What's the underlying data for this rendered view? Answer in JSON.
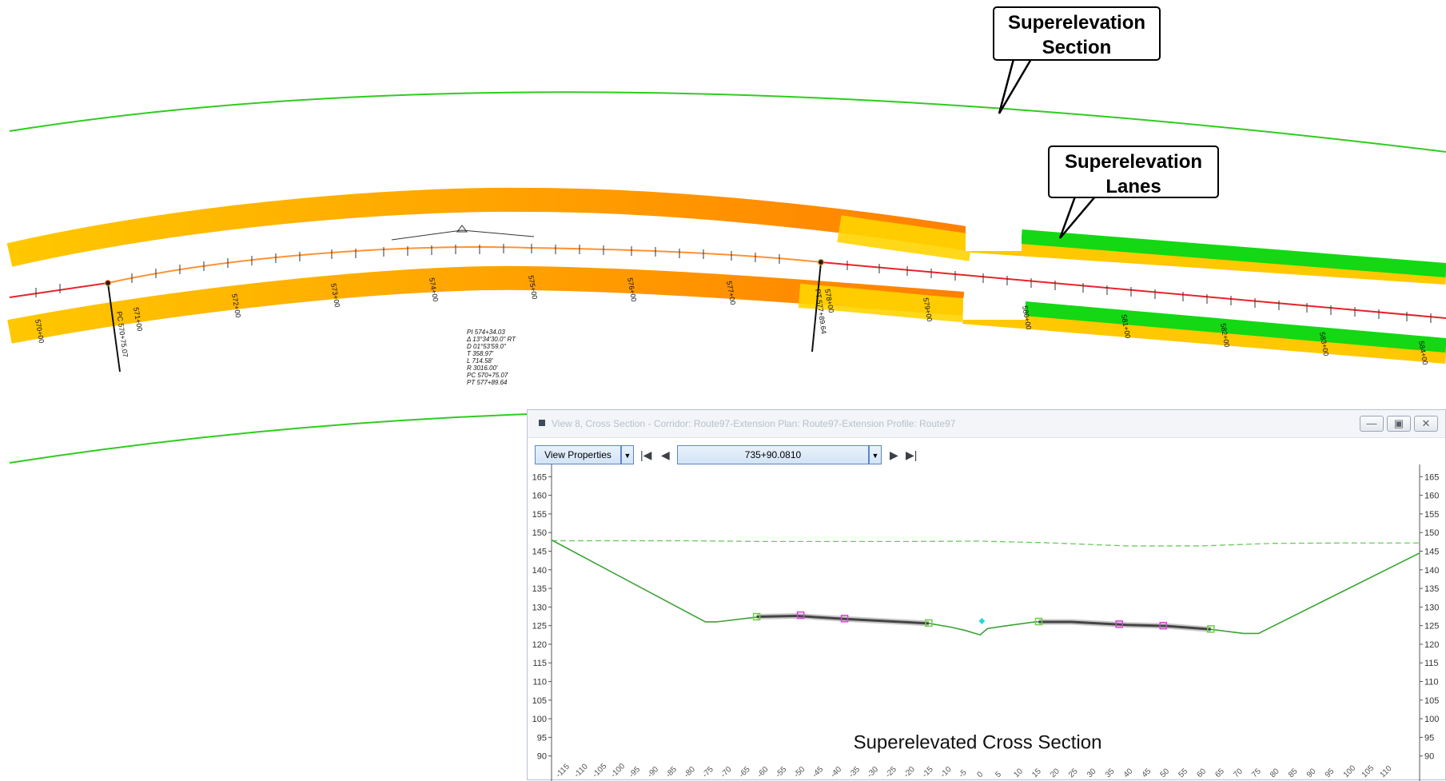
{
  "callouts": {
    "section": {
      "line1": "Superelevation",
      "line2": "Section"
    },
    "lanes": {
      "line1": "Superelevation",
      "line2": "Lanes"
    }
  },
  "plan": {
    "station_labels": [
      "570+00",
      "571+00",
      "572+00",
      "573+00",
      "574+00",
      "575+00",
      "576+00",
      "577+00",
      "578+00",
      "579+00",
      "580+00",
      "581+00",
      "582+00",
      "583+00",
      "584+00"
    ],
    "pc_label": "PC 570+75.07",
    "pt_label": "PT 577+89.64",
    "curve_data": [
      "PI  574+34.03",
      "Δ  13°34'30.0\"  RT",
      "D  01°53'59.0\"",
      "T  358.97'",
      "L  714.58'",
      "R  3016.00'",
      "PC  570+75.07",
      "PT  577+89.64"
    ],
    "colors": {
      "green": "#2ecc1f",
      "orange": "#ff7f00",
      "yellow": "#ffc800",
      "red": "#e8232a"
    }
  },
  "cross_section_window": {
    "title": "View 8, Cross Section - Corridor: Route97-Extension Plan: Route97-Extension Profile: Route97",
    "view_properties_label": "View Properties",
    "station_value": "735+90.0810",
    "icons": [
      "first-icon",
      "previous-icon",
      "dropdown-icon",
      "next-icon",
      "last-icon",
      "minimize-icon",
      "restore-icon",
      "close-icon"
    ],
    "caption": "Superelevated Cross Section"
  },
  "chart_data": {
    "type": "line",
    "title": "Superelevated Cross Section",
    "xlabel": "",
    "ylabel": "",
    "xlim": [
      -117,
      120
    ],
    "ylim": [
      88,
      167
    ],
    "x_ticks": [
      -115,
      -110,
      -105,
      -100,
      -95,
      -90,
      -85,
      -80,
      -75,
      -70,
      -65,
      -60,
      -55,
      -50,
      -45,
      -40,
      -35,
      -30,
      -25,
      -20,
      -15,
      -10,
      -5,
      0,
      5,
      10,
      15,
      20,
      25,
      30,
      35,
      40,
      45,
      50,
      55,
      60,
      65,
      70,
      75,
      80,
      85,
      90,
      95,
      100,
      105,
      110
    ],
    "y_ticks": [
      90,
      95,
      100,
      105,
      110,
      115,
      120,
      125,
      130,
      135,
      140,
      145,
      150,
      155,
      160,
      165
    ],
    "series": [
      {
        "role": "existing-ground",
        "color": "#6bc95e",
        "x": [
          -117,
          -100,
          -80,
          -60,
          -40,
          -20,
          0,
          20,
          40,
          60,
          80,
          100,
          120
        ],
        "y": [
          147.8,
          147.8,
          147.8,
          147.6,
          147.6,
          147.6,
          147.7,
          147.2,
          146.4,
          146.4,
          147.1,
          147.2,
          147.2
        ]
      },
      {
        "role": "proposed-section",
        "color": "#3aa335",
        "x": [
          -117,
          -75,
          -72,
          -60,
          -50,
          -37,
          -14,
          -8,
          -4,
          0,
          2,
          6,
          15,
          25,
          40,
          51,
          63,
          72,
          76,
          120
        ],
        "y": [
          148,
          126,
          126,
          127.4,
          127.6,
          126.8,
          125.6,
          124.6,
          123.7,
          122.5,
          124.2,
          124.8,
          126,
          126,
          125.2,
          124.9,
          124,
          122.9,
          122.9,
          144.5
        ]
      },
      {
        "role": "pavement-left",
        "color": "#444444",
        "x": [
          -61,
          -50,
          -37,
          -14
        ],
        "y": [
          127.4,
          127.6,
          126.8,
          125.6
        ]
      },
      {
        "role": "pavement-right",
        "color": "#444444",
        "x": [
          16,
          25,
          40,
          51,
          63
        ],
        "y": [
          126,
          126,
          125.2,
          124.9,
          124
        ]
      }
    ],
    "markers": [
      {
        "x": -61,
        "y": 127.4,
        "color": "#6fcf45"
      },
      {
        "x": -49,
        "y": 127.8,
        "color": "#e040e0"
      },
      {
        "x": -37,
        "y": 126.9,
        "color": "#e040e0"
      },
      {
        "x": -14,
        "y": 125.7,
        "color": "#6fcf45"
      },
      {
        "x": 0.5,
        "y": 126.2,
        "color": "#2dd6d6"
      },
      {
        "x": 16,
        "y": 126.1,
        "color": "#6fcf45"
      },
      {
        "x": 38,
        "y": 125.4,
        "color": "#e040e0"
      },
      {
        "x": 50,
        "y": 125,
        "color": "#e040e0"
      },
      {
        "x": 63,
        "y": 124.1,
        "color": "#6fcf45"
      }
    ],
    "grid": false
  }
}
